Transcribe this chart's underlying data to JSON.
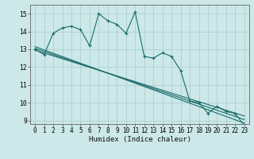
{
  "title": "",
  "xlabel": "Humidex (Indice chaleur)",
  "bg_color": "#cce8e8",
  "grid_color": "#b0d0d0",
  "line_color": "#1a6b6b",
  "xlim": [
    -0.5,
    23.5
  ],
  "ylim": [
    8.8,
    15.5
  ],
  "yticks": [
    9,
    10,
    11,
    12,
    13,
    14,
    15
  ],
  "xticks": [
    0,
    1,
    2,
    3,
    4,
    5,
    6,
    7,
    8,
    9,
    10,
    11,
    12,
    13,
    14,
    15,
    16,
    17,
    18,
    19,
    20,
    21,
    22,
    23
  ],
  "data_x": [
    0,
    1,
    2,
    3,
    4,
    5,
    6,
    7,
    8,
    9,
    10,
    11,
    12,
    13,
    14,
    15,
    16,
    17,
    18,
    19,
    20,
    21,
    22,
    23
  ],
  "data_y": [
    13.0,
    12.7,
    13.9,
    14.2,
    14.3,
    14.1,
    13.2,
    15.0,
    14.6,
    14.4,
    13.9,
    15.1,
    12.6,
    12.5,
    12.8,
    12.6,
    11.8,
    10.1,
    10.0,
    9.4,
    9.8,
    9.5,
    9.4,
    8.7
  ],
  "trend1_x": [
    0,
    23
  ],
  "trend1_y": [
    13.05,
    9.05
  ],
  "trend2_x": [
    0,
    23
  ],
  "trend2_y": [
    13.15,
    8.85
  ],
  "trend3_x": [
    0,
    23
  ],
  "trend3_y": [
    12.95,
    9.25
  ],
  "xlabel_fontsize": 6.5,
  "tick_fontsize": 5.5
}
